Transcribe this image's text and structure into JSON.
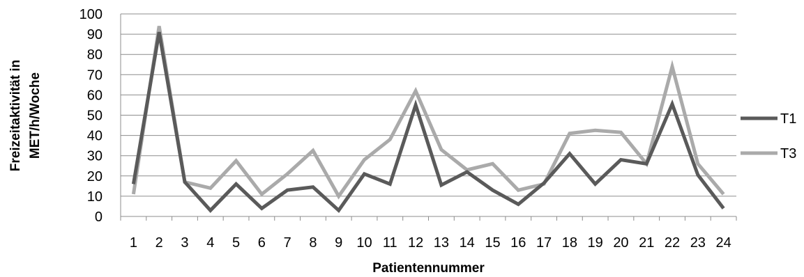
{
  "chart_data": {
    "type": "line",
    "title": "",
    "xlabel": "Patientennummer",
    "ylabel_lines": [
      "Freizeitaktivität in",
      "MET/h/Woche"
    ],
    "ylim": [
      0,
      100
    ],
    "yticks": [
      0,
      10,
      20,
      30,
      40,
      50,
      60,
      70,
      80,
      90,
      100
    ],
    "grid": true,
    "legend_position": "right",
    "categories": [
      "1",
      "2",
      "3",
      "4",
      "5",
      "6",
      "7",
      "8",
      "9",
      "10",
      "11",
      "12",
      "13",
      "14",
      "15",
      "16",
      "17",
      "18",
      "19",
      "20",
      "21",
      "22",
      "23",
      "24"
    ],
    "series": [
      {
        "name": "T1",
        "color": "#5a5a5a",
        "values": [
          16,
          91,
          17,
          3,
          16,
          4,
          13,
          14.5,
          3,
          21,
          16,
          55,
          15.5,
          22,
          13,
          6,
          16.5,
          31,
          16,
          28,
          26,
          55.5,
          20.5,
          4
        ]
      },
      {
        "name": "T3",
        "color": "#aaaaaa",
        "values": [
          11,
          94,
          17,
          14,
          27.5,
          11,
          21,
          32.5,
          10,
          28,
          38,
          62,
          33,
          23,
          26,
          13,
          16,
          41,
          42.5,
          41.5,
          26,
          74,
          26,
          11
        ]
      }
    ]
  }
}
